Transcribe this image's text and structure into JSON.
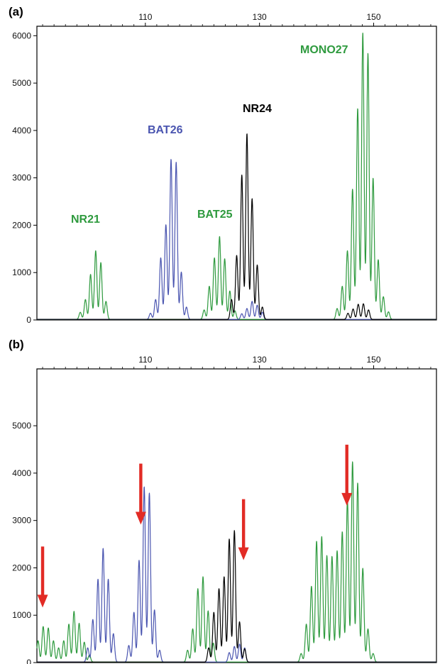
{
  "chart_data": [
    {
      "panel": "(a)",
      "type": "line",
      "x_ticks": [
        110,
        130,
        150
      ],
      "y_ticks": [
        0,
        1000,
        2000,
        3000,
        4000,
        5000,
        6000
      ],
      "xlim": [
        91,
        161
      ],
      "ylim": [
        0,
        6200
      ],
      "annotations": [
        {
          "text": "NR21",
          "color": "#2e9a3e"
        },
        {
          "text": "BAT26",
          "color": "#4a55b0"
        },
        {
          "text": "BAT25",
          "color": "#2e9a3e"
        },
        {
          "text": "NR24",
          "color": "#000000"
        },
        {
          "text": "MONO27",
          "color": "#2e9a3e"
        }
      ],
      "series": [
        {
          "color": "#2e9a3e",
          "peaks": [
            [
              98.6,
              150
            ],
            [
              99.5,
              420
            ],
            [
              100.4,
              950
            ],
            [
              101.3,
              1450
            ],
            [
              102.2,
              1200
            ],
            [
              103.1,
              380
            ],
            [
              120.3,
              200
            ],
            [
              121.2,
              700
            ],
            [
              122.1,
              1300
            ],
            [
              123,
              1750
            ],
            [
              123.9,
              1280
            ],
            [
              124.8,
              600
            ],
            [
              125.7,
              180
            ],
            [
              143.6,
              230
            ],
            [
              144.5,
              700
            ],
            [
              145.4,
              1450
            ],
            [
              146.3,
              2750
            ],
            [
              147.2,
              4450
            ],
            [
              148.1,
              6050
            ],
            [
              149,
              5620
            ],
            [
              149.9,
              2980
            ],
            [
              150.8,
              1260
            ],
            [
              151.7,
              480
            ],
            [
              152.6,
              160
            ]
          ]
        },
        {
          "color": "#4a55b0",
          "peaks": [
            [
              110.9,
              130
            ],
            [
              111.8,
              420
            ],
            [
              112.7,
              1300
            ],
            [
              113.6,
              2000
            ],
            [
              114.5,
              3380
            ],
            [
              115.4,
              3320
            ],
            [
              116.3,
              1000
            ],
            [
              117.2,
              260
            ],
            [
              126.9,
              120
            ],
            [
              127.8,
              230
            ],
            [
              128.7,
              380
            ],
            [
              129.6,
              300
            ],
            [
              130.5,
              150
            ]
          ]
        },
        {
          "color": "#000000",
          "peaks": [
            [
              125.1,
              420
            ],
            [
              126,
              1350
            ],
            [
              126.9,
              3050
            ],
            [
              127.8,
              3920
            ],
            [
              128.7,
              2550
            ],
            [
              129.6,
              1150
            ],
            [
              130.5,
              260
            ],
            [
              145.5,
              130
            ],
            [
              146.4,
              220
            ],
            [
              147.3,
              320
            ],
            [
              148.2,
              330
            ],
            [
              149.1,
              200
            ]
          ]
        }
      ]
    },
    {
      "panel": "(b)",
      "type": "line",
      "x_ticks": [
        110,
        130,
        150
      ],
      "y_ticks": [
        0,
        1000,
        2000,
        3000,
        4000,
        5000
      ],
      "xlim": [
        91,
        161
      ],
      "ylim": [
        0,
        6200
      ],
      "arrows": [
        {
          "x": 92,
          "y": 2450
        },
        {
          "x": 109.2,
          "y": 4200
        },
        {
          "x": 127.2,
          "y": 3450
        },
        {
          "x": 145.3,
          "y": 4600
        }
      ],
      "series": [
        {
          "color": "#2e9a3e",
          "peaks": [
            [
              91.2,
              450
            ],
            [
              92.1,
              750
            ],
            [
              93,
              720
            ],
            [
              93.9,
              450
            ],
            [
              94.8,
              300
            ],
            [
              95.7,
              450
            ],
            [
              96.6,
              800
            ],
            [
              97.5,
              1070
            ],
            [
              98.4,
              820
            ],
            [
              99.3,
              420
            ],
            [
              100.2,
              150
            ],
            [
              117.4,
              250
            ],
            [
              118.3,
              700
            ],
            [
              119.2,
              1550
            ],
            [
              120.1,
              1800
            ],
            [
              121,
              1080
            ],
            [
              121.9,
              400
            ],
            [
              137.3,
              180
            ],
            [
              138.2,
              800
            ],
            [
              139.1,
              1600
            ],
            [
              140,
              2550
            ],
            [
              140.9,
              2650
            ],
            [
              141.8,
              2250
            ],
            [
              142.7,
              2230
            ],
            [
              143.6,
              2350
            ],
            [
              144.5,
              2750
            ],
            [
              145.4,
              3450
            ],
            [
              146.3,
              4230
            ],
            [
              147.2,
              3780
            ],
            [
              148.1,
              1980
            ],
            [
              149,
              700
            ],
            [
              149.9,
              180
            ]
          ]
        },
        {
          "color": "#4a55b0",
          "peaks": [
            [
              99.9,
              300
            ],
            [
              100.8,
              900
            ],
            [
              101.7,
              1750
            ],
            [
              102.6,
              2400
            ],
            [
              103.5,
              1750
            ],
            [
              104.4,
              600
            ],
            [
              107.1,
              350
            ],
            [
              108,
              1050
            ],
            [
              108.9,
              2150
            ],
            [
              109.8,
              3700
            ],
            [
              110.7,
              3570
            ],
            [
              111.6,
              1100
            ],
            [
              112.5,
              250
            ],
            [
              124.7,
              200
            ],
            [
              125.6,
              330
            ],
            [
              126.5,
              380
            ],
            [
              127.4,
              300
            ]
          ]
        },
        {
          "color": "#000000",
          "peaks": [
            [
              121.1,
              300
            ],
            [
              122,
              1050
            ],
            [
              122.9,
              1550
            ],
            [
              123.8,
              1800
            ],
            [
              124.7,
              2600
            ],
            [
              125.6,
              2780
            ],
            [
              126.5,
              850
            ],
            [
              127.4,
              280
            ]
          ]
        }
      ]
    }
  ]
}
